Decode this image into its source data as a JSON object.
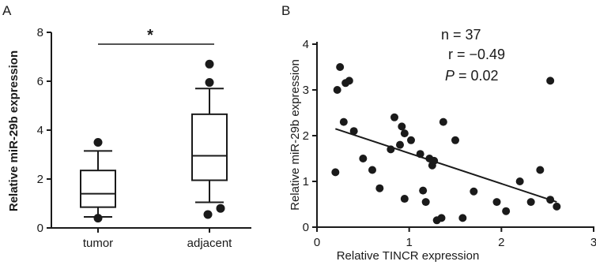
{
  "chart_data": [
    {
      "panel": "A",
      "type": "box",
      "ylabel": "Relative miR-29b expression",
      "ylim": [
        0,
        8
      ],
      "yticks": [
        "0",
        "2",
        "4",
        "6",
        "8"
      ],
      "categories": [
        "tumor",
        "adjacent"
      ],
      "boxes": [
        {
          "category": "tumor",
          "whisker_low": 0.45,
          "q1": 0.85,
          "median": 1.4,
          "q3": 2.35,
          "whisker_high": 3.15,
          "outliers": [
            0.4,
            3.5
          ]
        },
        {
          "category": "adjacent",
          "whisker_low": 1.05,
          "q1": 1.95,
          "median": 2.95,
          "q3": 4.65,
          "whisker_high": 5.7,
          "outliers": [
            0.55,
            0.8,
            5.95,
            6.7
          ]
        }
      ],
      "significance": "*"
    },
    {
      "panel": "B",
      "type": "scatter",
      "xlabel": "Relative TINCR expression",
      "ylabel": "Relative miR-29b expression",
      "xlim": [
        0,
        3
      ],
      "ylim": [
        0,
        4
      ],
      "xticks": [
        "0",
        "1",
        "2",
        "3"
      ],
      "yticks": [
        "0",
        "1",
        "2",
        "3",
        "4"
      ],
      "stats": {
        "n": "n = 37",
        "r": "r = −0.49",
        "p_italic": "P",
        "p_rest": " = 0.02"
      },
      "points": [
        {
          "x": 0.2,
          "y": 1.2
        },
        {
          "x": 0.22,
          "y": 3.0
        },
        {
          "x": 0.25,
          "y": 3.5
        },
        {
          "x": 0.29,
          "y": 2.3
        },
        {
          "x": 0.31,
          "y": 3.15
        },
        {
          "x": 0.35,
          "y": 3.2
        },
        {
          "x": 0.4,
          "y": 2.1
        },
        {
          "x": 0.5,
          "y": 1.5
        },
        {
          "x": 0.6,
          "y": 1.25
        },
        {
          "x": 0.68,
          "y": 0.85
        },
        {
          "x": 0.8,
          "y": 1.7
        },
        {
          "x": 0.84,
          "y": 2.4
        },
        {
          "x": 0.9,
          "y": 1.8
        },
        {
          "x": 0.92,
          "y": 2.2
        },
        {
          "x": 0.95,
          "y": 2.05
        },
        {
          "x": 0.95,
          "y": 0.62
        },
        {
          "x": 1.02,
          "y": 1.9
        },
        {
          "x": 1.12,
          "y": 1.6
        },
        {
          "x": 1.15,
          "y": 0.8
        },
        {
          "x": 1.18,
          "y": 0.55
        },
        {
          "x": 1.22,
          "y": 1.5
        },
        {
          "x": 1.25,
          "y": 1.35
        },
        {
          "x": 1.27,
          "y": 1.45
        },
        {
          "x": 1.3,
          "y": 0.15
        },
        {
          "x": 1.35,
          "y": 0.2
        },
        {
          "x": 1.37,
          "y": 2.3
        },
        {
          "x": 1.5,
          "y": 1.9
        },
        {
          "x": 1.58,
          "y": 0.2
        },
        {
          "x": 1.7,
          "y": 0.78
        },
        {
          "x": 1.95,
          "y": 0.55
        },
        {
          "x": 2.05,
          "y": 0.35
        },
        {
          "x": 2.2,
          "y": 1.0
        },
        {
          "x": 2.32,
          "y": 0.55
        },
        {
          "x": 2.42,
          "y": 1.25
        },
        {
          "x": 2.53,
          "y": 3.2
        },
        {
          "x": 2.53,
          "y": 0.6
        },
        {
          "x": 2.6,
          "y": 0.45
        }
      ],
      "fit_line": {
        "x1": 0.2,
        "y1": 2.15,
        "x2": 2.6,
        "y2": 0.55
      }
    }
  ]
}
